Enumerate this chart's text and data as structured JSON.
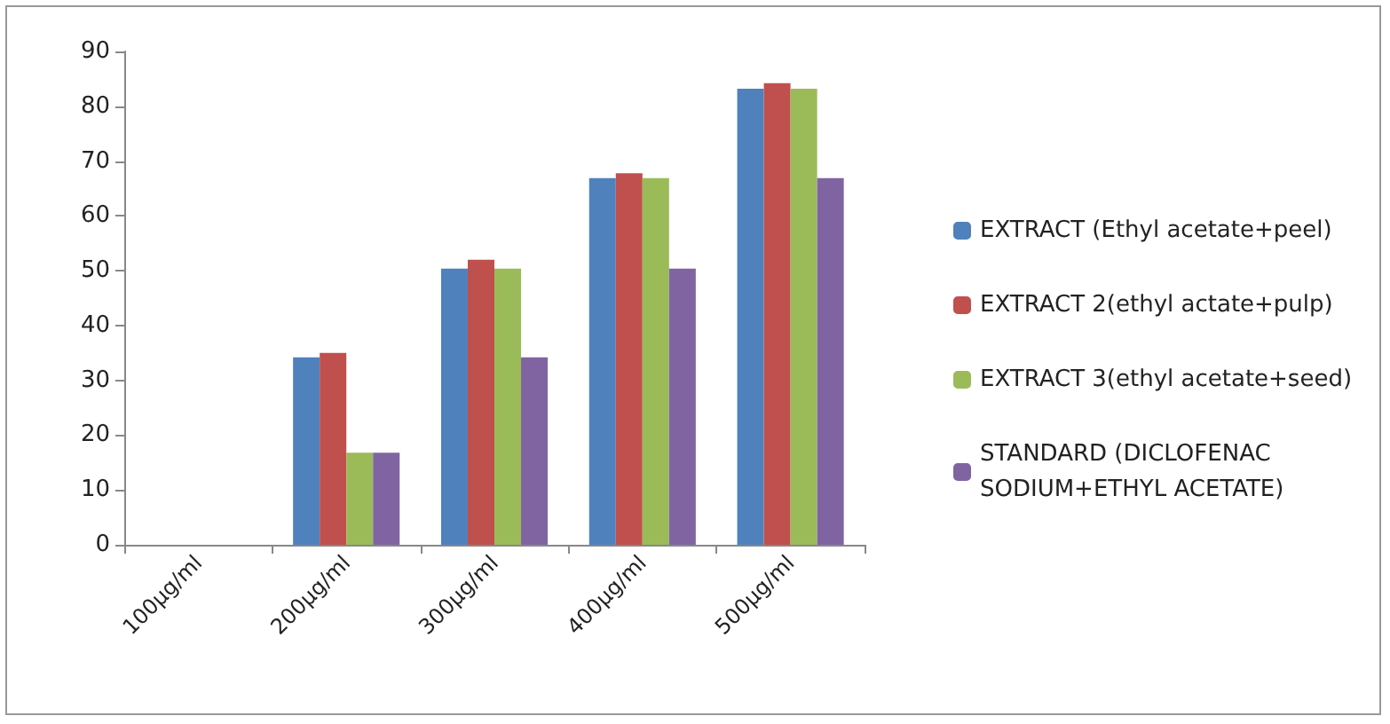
{
  "chart_data": {
    "type": "bar",
    "categories": [
      "100µg/ml",
      "200µg/ml",
      "300µg/ml",
      "400µg/ml",
      "500µg/ml"
    ],
    "series": [
      {
        "name": "EXTRACT (Ethyl acetate+peel)",
        "color": "#4f81bd",
        "values": [
          0,
          34.2,
          50.4,
          66.9,
          83.2
        ]
      },
      {
        "name": "EXTRACT 2(ethyl actate+pulp)",
        "color": "#c0504d",
        "values": [
          0,
          35,
          52,
          67.8,
          84.2
        ]
      },
      {
        "name": "EXTRACT 3(ethyl acetate+seed)",
        "color": "#9bbb59",
        "values": [
          0,
          16.8,
          50.4,
          66.9,
          83.2
        ]
      },
      {
        "name": "STANDARD (DICLOFENAC SODIUM+ETHYL ACETATE)",
        "color": "#8064a2",
        "values": [
          0,
          16.8,
          34.2,
          50.4,
          66.9
        ]
      }
    ],
    "ylim": [
      0,
      90
    ],
    "yticks": [
      0,
      10,
      20,
      30,
      40,
      50,
      60,
      70,
      80,
      90
    ],
    "grid": false,
    "legend": "right"
  }
}
